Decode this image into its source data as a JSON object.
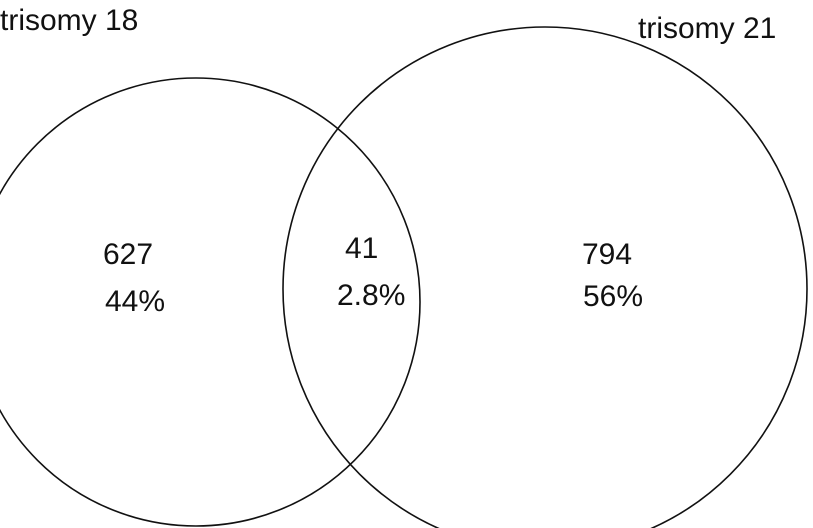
{
  "sets": [
    {
      "label": "trisomy 18"
    },
    {
      "label": "trisomy 21"
    }
  ],
  "regions": [
    {
      "count": "627",
      "percent": "44%"
    },
    {
      "count": "41",
      "percent": "2.8%"
    },
    {
      "count": "794",
      "percent": "56%"
    }
  ]
}
